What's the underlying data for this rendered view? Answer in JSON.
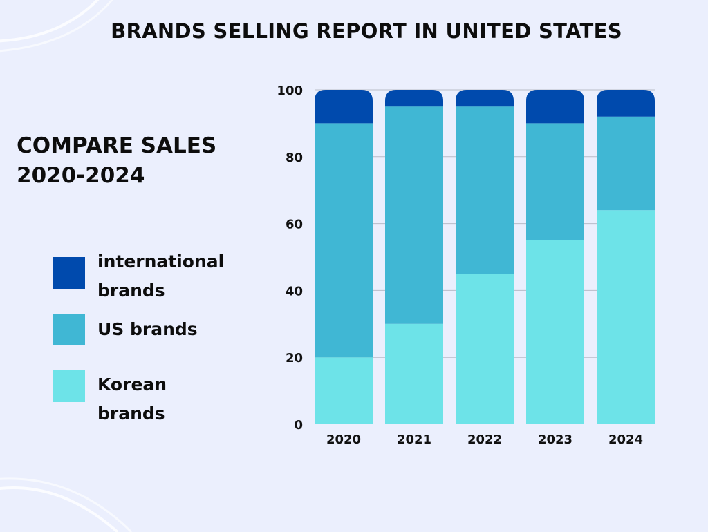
{
  "title": "BRANDS SELLING REPORT IN UNITED STATES",
  "subtitle_lines": [
    "COMPARE SALES",
    "2020-2024"
  ],
  "colors": {
    "background": "#ebeffd",
    "international": "#004aad",
    "us": "#40b7d4",
    "korean": "#6de3e8",
    "grid": "#b8bcc8"
  },
  "chart_data": {
    "type": "bar",
    "stacked": true,
    "categories": [
      "2020",
      "2021",
      "2022",
      "2023",
      "2024"
    ],
    "series": [
      {
        "name": "Korean brands",
        "color": "#6de3e8",
        "values": [
          20,
          30,
          45,
          55,
          64
        ]
      },
      {
        "name": "US brands",
        "color": "#40b7d4",
        "values": [
          70,
          65,
          50,
          35,
          28
        ]
      },
      {
        "name": "international brands",
        "color": "#004aad",
        "values": [
          10,
          5,
          5,
          10,
          8
        ]
      }
    ],
    "ylim": [
      0,
      100
    ],
    "yticks": [
      "0",
      "20",
      "40",
      "60",
      "80",
      "100"
    ],
    "grid": true,
    "legend_placement": "left"
  },
  "legend": [
    {
      "label_lines": [
        "international",
        "brands"
      ],
      "color": "#004aad"
    },
    {
      "label_lines": [
        "US brands"
      ],
      "color": "#40b7d4"
    },
    {
      "label_lines": [
        "Korean",
        "brands"
      ],
      "color": "#6de3e8"
    }
  ]
}
